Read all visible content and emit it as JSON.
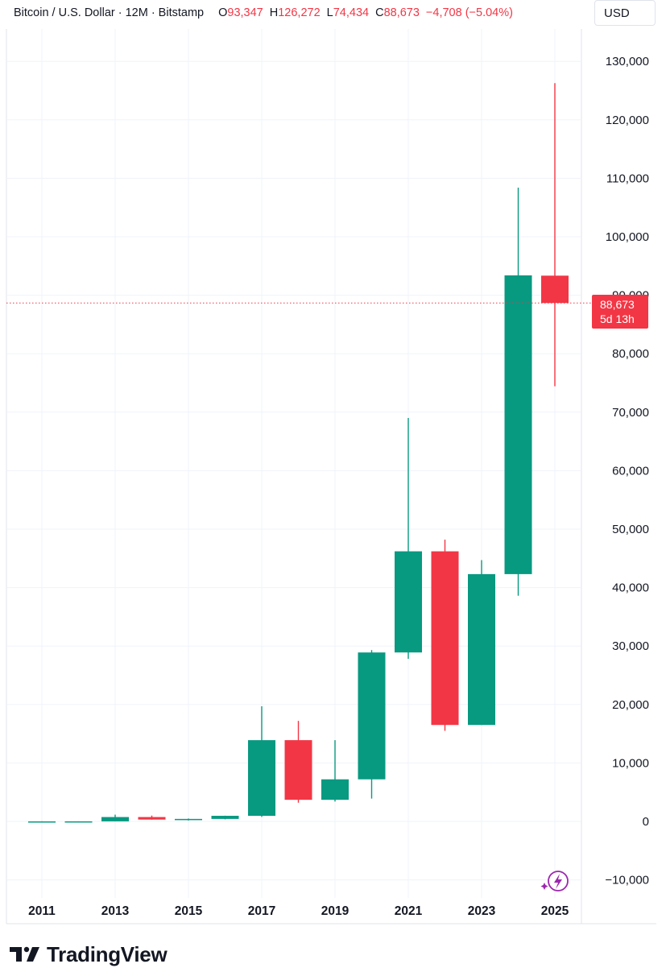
{
  "header": {
    "symbol": "Bitcoin / U.S. Dollar · 12M · Bitstamp",
    "open_label": "O",
    "open_value": "93,347",
    "high_label": "H",
    "high_value": "126,272",
    "low_label": "L",
    "low_value": "74,434",
    "close_label": "C",
    "close_value": "88,673",
    "change_value": "−4,708 (−5.04%)"
  },
  "currency_button": "USD",
  "price_label": {
    "price": "88,673",
    "countdown": "5d 13h"
  },
  "brand": {
    "name": "TradingView",
    "logo_icon": "tradingview-logo-icon"
  },
  "colors": {
    "up": "#089981",
    "down": "#f23645",
    "grid": "#f0f3fa",
    "text": "#131722"
  },
  "chart_data": {
    "type": "candlestick",
    "title": "Bitcoin / U.S. Dollar · 12M · Bitstamp",
    "ylim": [
      -12000,
      140000
    ],
    "yticks": [
      -10000,
      0,
      10000,
      20000,
      30000,
      40000,
      50000,
      60000,
      70000,
      80000,
      90000,
      100000,
      110000,
      120000,
      130000
    ],
    "ytick_labels": [
      "−10,000",
      "0",
      "10,000",
      "20,000",
      "30,000",
      "40,000",
      "50,000",
      "60,000",
      "70,000",
      "80,000",
      "90,000",
      "100,000",
      "110,000",
      "120,000",
      "130,000"
    ],
    "xtick_labels": [
      "2011",
      "2013",
      "2015",
      "2017",
      "2019",
      "2021",
      "2023",
      "2025"
    ],
    "grid": true,
    "current_price": 88673,
    "candles": [
      {
        "year": 2011,
        "open": 5,
        "high": 30,
        "low": 2,
        "close": 5
      },
      {
        "year": 2012,
        "open": 5,
        "high": 14,
        "low": 4,
        "close": 13
      },
      {
        "year": 2013,
        "open": 13,
        "high": 1160,
        "low": 13,
        "close": 750
      },
      {
        "year": 2014,
        "open": 750,
        "high": 1000,
        "low": 300,
        "close": 320
      },
      {
        "year": 2015,
        "open": 320,
        "high": 500,
        "low": 160,
        "close": 430
      },
      {
        "year": 2016,
        "open": 430,
        "high": 980,
        "low": 350,
        "close": 960
      },
      {
        "year": 2017,
        "open": 960,
        "high": 19700,
        "low": 780,
        "close": 13900
      },
      {
        "year": 2018,
        "open": 13900,
        "high": 17200,
        "low": 3200,
        "close": 3700
      },
      {
        "year": 2019,
        "open": 3700,
        "high": 13900,
        "low": 3400,
        "close": 7200
      },
      {
        "year": 2020,
        "open": 7200,
        "high": 29300,
        "low": 3900,
        "close": 28900
      },
      {
        "year": 2021,
        "open": 28900,
        "high": 69000,
        "low": 27800,
        "close": 46200
      },
      {
        "year": 2022,
        "open": 46200,
        "high": 48200,
        "low": 15500,
        "close": 16500
      },
      {
        "year": 2023,
        "open": 16500,
        "high": 44700,
        "low": 16500,
        "close": 42300
      },
      {
        "year": 2024,
        "open": 42300,
        "high": 108400,
        "low": 38600,
        "close": 93400
      },
      {
        "year": 2025,
        "open": 93347,
        "high": 126272,
        "low": 74434,
        "close": 88673
      }
    ]
  }
}
